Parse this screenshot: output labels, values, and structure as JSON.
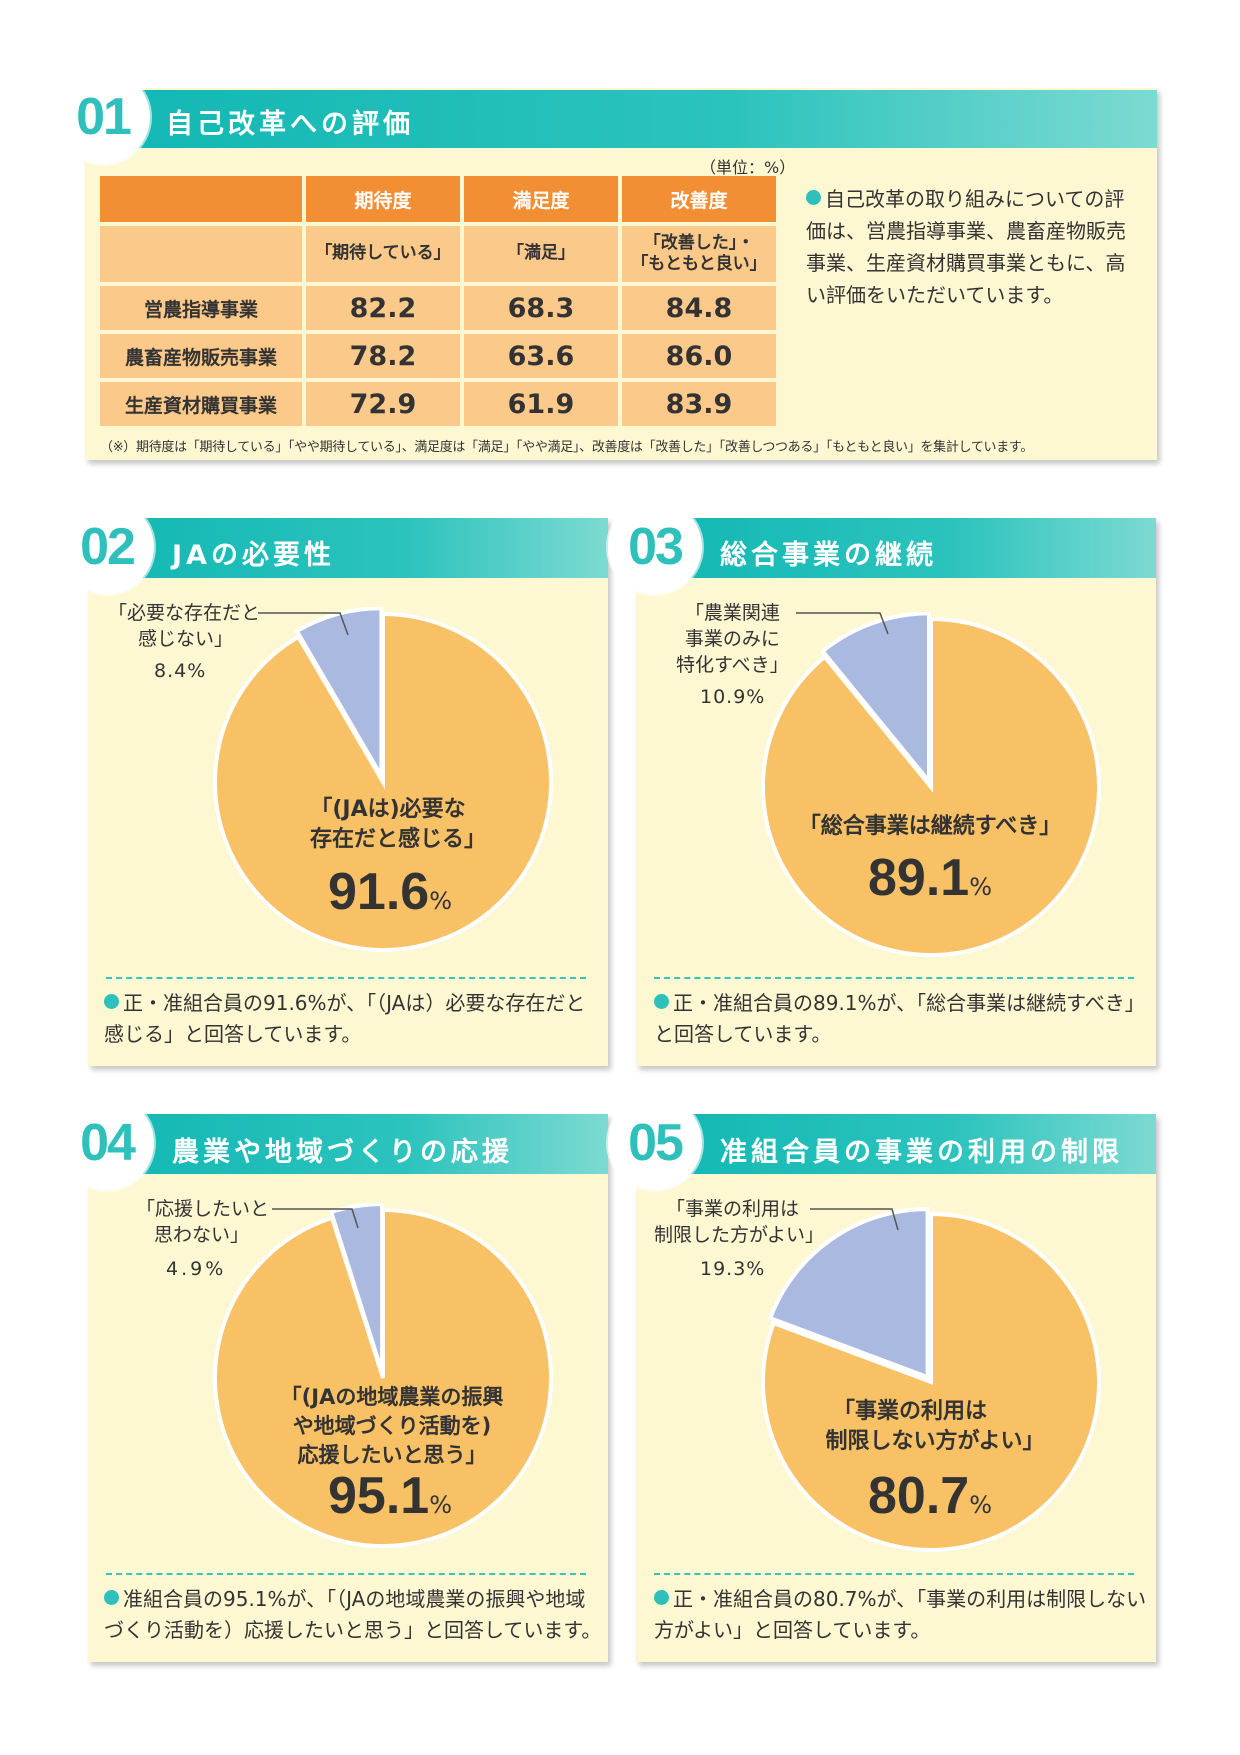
{
  "section1": {
    "number": "01",
    "title": "自己改革への評価",
    "unit": "（単位：%）",
    "columns": [
      {
        "header": "期待度",
        "sub": "「期待している」"
      },
      {
        "header": "満足度",
        "sub": "「満足」"
      },
      {
        "header": "改善度",
        "sub": "「改善した」・「もともと良い」"
      }
    ],
    "col3_sub_line1": "「改善した」・",
    "col3_sub_line2": "「もともと良い」",
    "rows": [
      {
        "label": "営農指導事業",
        "values": [
          "82.2",
          "68.3",
          "84.8"
        ]
      },
      {
        "label": "農畜産物販売事業",
        "values": [
          "78.2",
          "63.6",
          "86.0"
        ]
      },
      {
        "label": "生産資材購買事業",
        "values": [
          "72.9",
          "61.9",
          "83.9"
        ]
      }
    ],
    "note": "（※）期待度は「期待している」「やや期待している」、満足度は「満足」「やや満足」、改善度は「改善した」「改善しつつある」「もともと良い」を集計しています。",
    "side_text": "自己改革の取り組みについての評価は、営農指導事業、農畜産物販売事業、生産資材購買事業ともに、高い評価をいただいています。"
  },
  "charts": [
    {
      "number": "02",
      "title": "JAの必要性",
      "small_label_lines": [
        "「必要な存在だと",
        "感じない」"
      ],
      "small_pct": "8.4%",
      "main_label_lines": [
        "「(JAは)必要な",
        "存在だと感じる」"
      ],
      "main_value": "91.6",
      "pct_sign": "%",
      "footer": "正・准組合員の91.6%が、「（JAは）必要な存在だと感じる」と回答しています。"
    },
    {
      "number": "03",
      "title": "総合事業の継続",
      "small_label_lines": [
        "「農業関連",
        "事業のみに",
        "特化すべき」"
      ],
      "small_pct": "10.9%",
      "main_label_lines": [
        "「総合事業は継続すべき」"
      ],
      "main_value": "89.1",
      "pct_sign": "%",
      "footer": "正・准組合員の89.1%が、「総合事業は継続すべき」と回答しています。"
    },
    {
      "number": "04",
      "title": "農業や地域づくりの応援",
      "small_label_lines": [
        "「応援したいと",
        "思わない」"
      ],
      "small_pct": "4.9%",
      "main_label_lines": [
        "「(JAの地域農業の振興",
        "や地域づくり活動を)",
        "応援したいと思う」"
      ],
      "main_value": "95.1",
      "pct_sign": "%",
      "footer": "准組合員の95.1%が、「（JAの地域農業の振興や地域づくり活動を）応援したいと思う」と回答しています。"
    },
    {
      "number": "05",
      "title": "准組合員の事業の利用の制限",
      "small_label_lines": [
        "「事業の利用は",
        "制限した方がよい」"
      ],
      "small_pct": "19.3%",
      "main_label_lines": [
        "「事業の利用は",
        "制限しない方がよい」"
      ],
      "main_value": "80.7",
      "pct_sign": "%",
      "footer": "正・准組合員の80.7%が、「事業の利用は制限しない方がよい」と回答しています。"
    }
  ],
  "chart_data": [
    {
      "type": "pie",
      "title": "JAの必要性",
      "series": [
        {
          "name": "「(JAは)必要な存在だと感じる」",
          "value": 91.6
        },
        {
          "name": "「必要な存在だと感じない」",
          "value": 8.4
        }
      ]
    },
    {
      "type": "pie",
      "title": "総合事業の継続",
      "series": [
        {
          "name": "「総合事業は継続すべき」",
          "value": 89.1
        },
        {
          "name": "「農業関連事業のみに特化すべき」",
          "value": 10.9
        }
      ]
    },
    {
      "type": "pie",
      "title": "農業や地域づくりの応援",
      "series": [
        {
          "name": "「(JAの地域農業の振興や地域づくり活動を)応援したいと思う」",
          "value": 95.1
        },
        {
          "name": "「応援したいと思わない」",
          "value": 4.9
        }
      ]
    },
    {
      "type": "pie",
      "title": "准組合員の事業の利用の制限",
      "series": [
        {
          "name": "「事業の利用は制限しない方がよい」",
          "value": 80.7
        },
        {
          "name": "「事業の利用は制限した方がよい」",
          "value": 19.3
        }
      ]
    }
  ],
  "colors": {
    "teal": "#12b7b3",
    "orange": "#f28f34",
    "pie_main": "#f9c166",
    "pie_minor": "#a9b9e0",
    "panel": "#fdf7d2"
  }
}
